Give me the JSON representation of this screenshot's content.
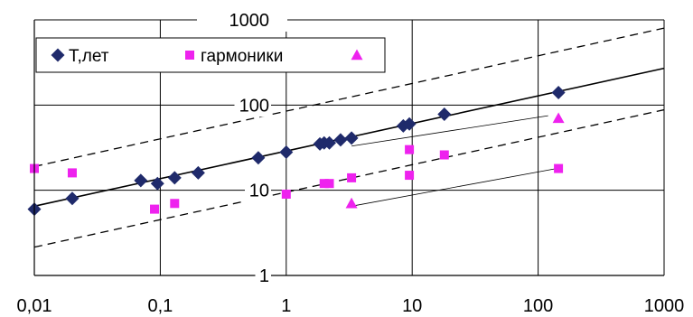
{
  "chart_data": {
    "type": "scatter",
    "x_scale": "log",
    "y_scale": "log",
    "xlim": [
      0.01,
      1000
    ],
    "ylim": [
      1,
      1000
    ],
    "grid": true,
    "legend_position": "top-left",
    "x_tick_labels": [
      "0,01",
      "0,1",
      "1",
      "10",
      "100",
      "1000"
    ],
    "y_tick_labels": [
      "1",
      "10",
      "100",
      "1000"
    ],
    "series": [
      {
        "name": "Т,лет",
        "marker": "diamond",
        "color": "#1f2a6b",
        "points": [
          [
            0.01,
            6
          ],
          [
            0.02,
            8
          ],
          [
            0.07,
            13
          ],
          [
            0.095,
            12
          ],
          [
            0.13,
            14
          ],
          [
            0.2,
            16
          ],
          [
            0.6,
            24
          ],
          [
            1.0,
            28
          ],
          [
            1.85,
            35
          ],
          [
            2.0,
            36
          ],
          [
            2.2,
            36
          ],
          [
            2.7,
            39
          ],
          [
            3.3,
            41
          ],
          [
            8.5,
            57
          ],
          [
            9.5,
            60
          ],
          [
            18,
            78
          ],
          [
            145,
            140
          ]
        ]
      },
      {
        "name": "гармоники",
        "marker": "square",
        "color": "#ee22ee",
        "points": [
          [
            0.01,
            18
          ],
          [
            0.02,
            16
          ],
          [
            0.09,
            6
          ],
          [
            0.13,
            7
          ],
          [
            1.0,
            9
          ],
          [
            2.0,
            12
          ],
          [
            2.2,
            12
          ],
          [
            3.3,
            14
          ],
          [
            9.5,
            30
          ],
          [
            9.5,
            15
          ],
          [
            18,
            26
          ],
          [
            145,
            18
          ]
        ]
      },
      {
        "name": "",
        "marker": "triangle",
        "color": "#ee22ee",
        "points": [
          [
            3.3,
            7
          ],
          [
            145,
            70
          ]
        ]
      }
    ],
    "lines": [
      {
        "style": "solid",
        "width": 1.6,
        "from": [
          0.01,
          6.5
        ],
        "to": [
          1000,
          270
        ]
      },
      {
        "style": "dashed",
        "width": 1.3,
        "from": [
          0.01,
          19
        ],
        "to": [
          1000,
          800
        ]
      },
      {
        "style": "dashed",
        "width": 1.3,
        "from": [
          0.01,
          2.15
        ],
        "to": [
          1000,
          88
        ]
      },
      {
        "style": "solid",
        "width": 0.8,
        "from": [
          3.3,
          33
        ],
        "to": [
          120,
          75
        ]
      },
      {
        "style": "solid",
        "width": 0.8,
        "from": [
          3.3,
          6.5
        ],
        "to": [
          140,
          18
        ]
      }
    ]
  }
}
